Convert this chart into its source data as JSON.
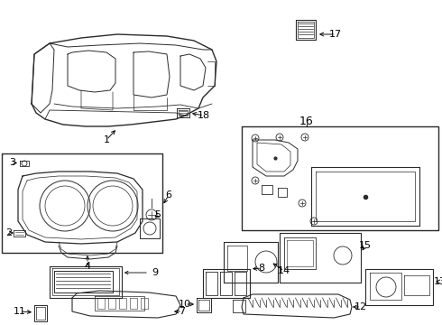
{
  "bg_color": "#ffffff",
  "line_color": "#2a2a2a",
  "fig_w": 4.9,
  "fig_h": 3.6,
  "dpi": 100
}
